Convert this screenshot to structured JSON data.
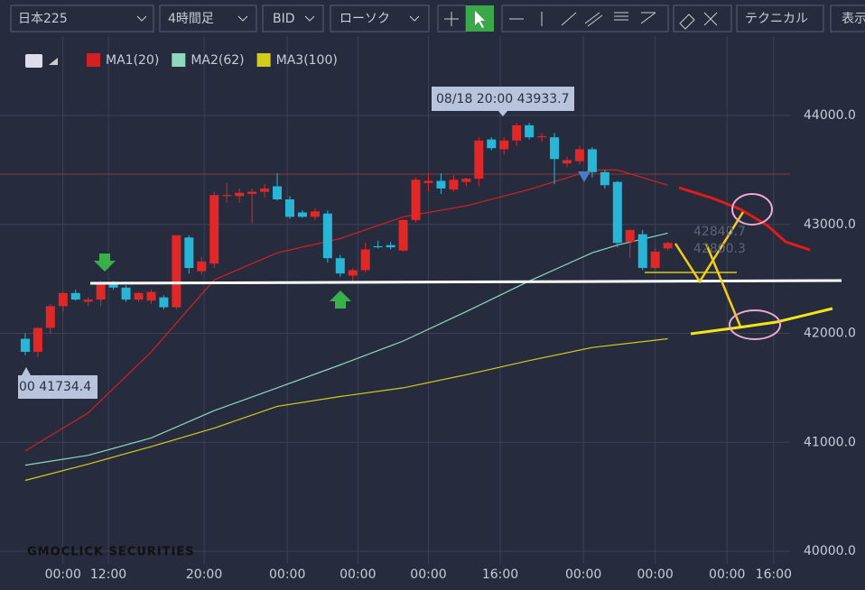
{
  "toolbar": {
    "symbol": "日本225",
    "timeframe": "4時間足",
    "price_type": "BID",
    "chart_style": "ローソク",
    "technical": "テクニカル",
    "display": "表示"
  },
  "chart_data": {
    "type": "candlestick",
    "legend": [
      "MA1(20)",
      "MA2(62)",
      "MA3(100)"
    ],
    "up_color": "#e02828",
    "down_color": "#29b6d6",
    "open": [
      41950,
      41830,
      42050,
      42250,
      42370,
      42290,
      42310,
      42450,
      42420,
      42310,
      42300,
      42330,
      42240,
      42880,
      42570,
      42640,
      43260,
      43260,
      43280,
      43300,
      43350,
      43230,
      43110,
      43070,
      43100,
      42690,
      42530,
      42580,
      42800,
      42810,
      42760,
      43040,
      43380,
      43400,
      43320,
      43390,
      43420,
      43780,
      43690,
      43770,
      43910,
      43800,
      43800,
      43560,
      43580,
      43690,
      43480,
      43390,
      42840,
      42910,
      42600,
      42780
    ],
    "high": [
      42000,
      42050,
      42270,
      42380,
      42400,
      42330,
      42480,
      42480,
      42440,
      42380,
      42400,
      42350,
      42900,
      42900,
      42700,
      43300,
      43380,
      43330,
      43330,
      43370,
      43470,
      43260,
      43130,
      43150,
      43130,
      42720,
      42600,
      42830,
      42850,
      42840,
      43050,
      43430,
      43470,
      43470,
      43450,
      43430,
      43800,
      43800,
      43800,
      43934,
      43934,
      43840,
      43840,
      43620,
      43720,
      43710,
      43500,
      43400,
      42950,
      42950,
      42780,
      42840
    ],
    "low": [
      41800,
      41780,
      42000,
      42200,
      42300,
      42250,
      42250,
      42400,
      42290,
      42290,
      42270,
      42220,
      42220,
      42550,
      42540,
      42600,
      43200,
      43200,
      43010,
      43250,
      43220,
      43050,
      43060,
      43040,
      42650,
      42520,
      42480,
      42560,
      42780,
      42770,
      42750,
      43020,
      43300,
      43280,
      43300,
      43350,
      43350,
      43680,
      43640,
      43720,
      43780,
      43760,
      43370,
      43530,
      43550,
      43430,
      43330,
      42790,
      42690,
      42580,
      42580,
      42760
    ],
    "close": [
      41830,
      42050,
      42250,
      42370,
      42310,
      42310,
      42450,
      42420,
      42310,
      42370,
      42380,
      42240,
      42900,
      42600,
      42660,
      43270,
      43270,
      43290,
      43300,
      43330,
      43230,
      43070,
      43070,
      43120,
      42690,
      42550,
      42580,
      42770,
      42790,
      42790,
      43040,
      43410,
      43400,
      43330,
      43410,
      43420,
      43770,
      43700,
      43770,
      43910,
      43800,
      43810,
      43600,
      43590,
      43690,
      43480,
      43360,
      42830,
      42950,
      42600,
      42750,
      42830
    ],
    "series": [
      {
        "name": "MA1(20)",
        "color": "#d42020",
        "x": [
          0,
          5,
          10,
          15,
          20,
          25,
          30,
          35,
          40,
          45,
          47,
          51
        ],
        "values": [
          40920,
          41270,
          41830,
          42490,
          42740,
          42870,
          43070,
          43170,
          43320,
          43500,
          43500,
          43360
        ]
      },
      {
        "name": "MA2(62)",
        "color": "#8fd8c0",
        "x": [
          0,
          5,
          10,
          15,
          20,
          25,
          30,
          35,
          40,
          45,
          47,
          51
        ],
        "values": [
          40790,
          40880,
          41040,
          41290,
          41500,
          41710,
          41930,
          42200,
          42480,
          42740,
          42810,
          42920
        ]
      },
      {
        "name": "MA3(100)",
        "color": "#d4cc1a",
        "x": [
          0,
          5,
          10,
          15,
          20,
          25,
          30,
          35,
          40,
          45,
          51
        ],
        "values": [
          40650,
          40800,
          40960,
          41130,
          41330,
          41420,
          41500,
          41620,
          41750,
          41870,
          41950
        ]
      }
    ],
    "xlim": [
      -2,
      60.7
    ],
    "xticks": [
      {
        "value": 3,
        "label": "00:00"
      },
      {
        "value": 6.6,
        "label": "12:00"
      },
      {
        "value": 14.2,
        "label": "20:00"
      },
      {
        "value": 20.8,
        "label": "00:00"
      },
      {
        "value": 26.4,
        "label": "00:00"
      },
      {
        "value": 32,
        "label": "00:00"
      },
      {
        "value": 37.7,
        "label": "16:00"
      },
      {
        "value": 44.3,
        "label": "00:00"
      },
      {
        "value": 50,
        "label": "00:00"
      },
      {
        "value": 55.7,
        "label": "00:00"
      },
      {
        "value": 59.4,
        "label": "16:00"
      }
    ],
    "ylim": [
      39884,
      44729
    ],
    "yticks": [
      {
        "value": 40000,
        "label": "40000.0"
      },
      {
        "value": 41000,
        "label": "41000.0"
      },
      {
        "value": 42000,
        "label": "42000.0"
      },
      {
        "value": 43000,
        "label": "43000.0"
      },
      {
        "value": 44000,
        "label": "44000.0"
      }
    ],
    "grid": true,
    "annotations": [
      "08/18 20:00 43933.7",
      "00 41734.4",
      "42840.7",
      "42800.3"
    ],
    "watermark": "GMOCLICK SECURITIES"
  }
}
